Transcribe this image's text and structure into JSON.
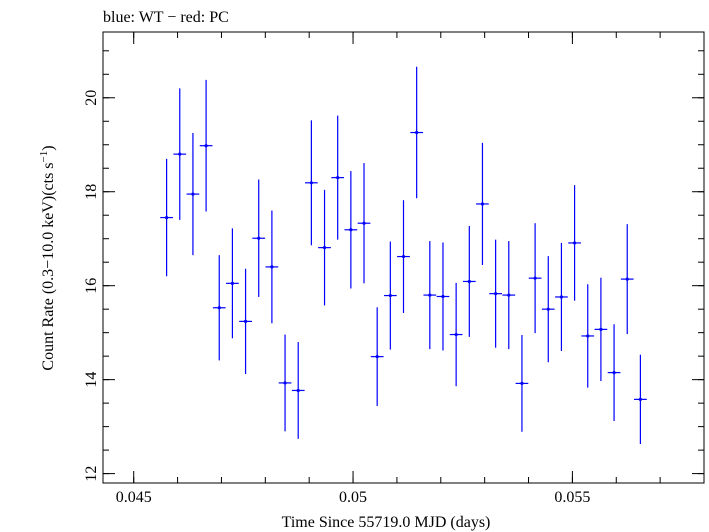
{
  "chart_data": {
    "type": "scatter",
    "title": "blue: WT − red: PC",
    "xlabel": "Time Since 55719.0 MJD (days)",
    "ylabel": "Count Rate (0.3−10.0 keV)(cts s",
    "ylabel_sup": "−1",
    "ylabel_tail": ")",
    "xlim": [
      0.0443,
      0.058
    ],
    "ylim": [
      11.8,
      21.4
    ],
    "x_ticks": [
      0.045,
      0.05,
      0.055
    ],
    "x_tick_labels": [
      "0.045",
      "0.05",
      "0.055"
    ],
    "y_ticks": [
      12,
      14,
      16,
      18,
      20
    ],
    "y_tick_labels": [
      "12",
      "14",
      "16",
      "18",
      "20"
    ],
    "x_minor_step": 0.001,
    "y_minor_step": 0.5,
    "grid": false,
    "series": [
      {
        "color": "#0000ff",
        "x_halfwidth": 0.000145,
        "points": [
          {
            "x": 0.04575,
            "y": 17.45,
            "err": 1.25
          },
          {
            "x": 0.04605,
            "y": 18.8,
            "err": 1.4
          },
          {
            "x": 0.04635,
            "y": 17.95,
            "err": 1.3
          },
          {
            "x": 0.04665,
            "y": 18.98,
            "err": 1.4
          },
          {
            "x": 0.04695,
            "y": 15.53,
            "err": 1.12
          },
          {
            "x": 0.04725,
            "y": 16.05,
            "err": 1.17
          },
          {
            "x": 0.04755,
            "y": 15.24,
            "err": 1.12
          },
          {
            "x": 0.04785,
            "y": 17.01,
            "err": 1.25
          },
          {
            "x": 0.04815,
            "y": 16.4,
            "err": 1.2
          },
          {
            "x": 0.04845,
            "y": 13.93,
            "err": 1.03
          },
          {
            "x": 0.04875,
            "y": 13.77,
            "err": 1.03
          },
          {
            "x": 0.04905,
            "y": 18.19,
            "err": 1.33
          },
          {
            "x": 0.04935,
            "y": 16.81,
            "err": 1.23
          },
          {
            "x": 0.04965,
            "y": 18.3,
            "err": 1.32
          },
          {
            "x": 0.04995,
            "y": 17.19,
            "err": 1.25
          },
          {
            "x": 0.05025,
            "y": 17.33,
            "err": 1.28
          },
          {
            "x": 0.05055,
            "y": 14.49,
            "err": 1.05
          },
          {
            "x": 0.05085,
            "y": 15.79,
            "err": 1.15
          },
          {
            "x": 0.05115,
            "y": 16.62,
            "err": 1.2
          },
          {
            "x": 0.05145,
            "y": 19.26,
            "err": 1.4
          },
          {
            "x": 0.05175,
            "y": 15.8,
            "err": 1.15
          },
          {
            "x": 0.05205,
            "y": 15.77,
            "err": 1.15
          },
          {
            "x": 0.05235,
            "y": 14.96,
            "err": 1.1
          },
          {
            "x": 0.05265,
            "y": 16.09,
            "err": 1.18
          },
          {
            "x": 0.05295,
            "y": 17.74,
            "err": 1.3
          },
          {
            "x": 0.05325,
            "y": 15.83,
            "err": 1.15
          },
          {
            "x": 0.05355,
            "y": 15.8,
            "err": 1.15
          },
          {
            "x": 0.05385,
            "y": 13.92,
            "err": 1.03
          },
          {
            "x": 0.05415,
            "y": 16.16,
            "err": 1.17
          },
          {
            "x": 0.05445,
            "y": 15.5,
            "err": 1.13
          },
          {
            "x": 0.05475,
            "y": 15.76,
            "err": 1.15
          },
          {
            "x": 0.05505,
            "y": 16.91,
            "err": 1.23
          },
          {
            "x": 0.05535,
            "y": 14.93,
            "err": 1.1
          },
          {
            "x": 0.05565,
            "y": 15.07,
            "err": 1.1
          },
          {
            "x": 0.05595,
            "y": 14.15,
            "err": 1.03
          },
          {
            "x": 0.05625,
            "y": 16.14,
            "err": 1.17
          },
          {
            "x": 0.05655,
            "y": 13.58,
            "err": 0.95
          }
        ]
      }
    ]
  }
}
